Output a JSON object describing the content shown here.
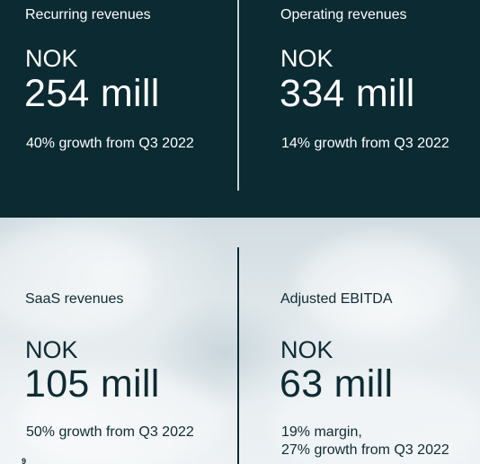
{
  "metrics": {
    "recurring": {
      "label": "Recurring revenues",
      "currency": "NOK",
      "value": "254 mill",
      "note": "40% growth from Q3 2022"
    },
    "operating": {
      "label": "Operating revenues",
      "currency": "NOK",
      "value": "334 mill",
      "note": "14% growth from Q3 2022"
    },
    "saas": {
      "label": "SaaS revenues",
      "currency": "NOK",
      "value": "105 mill",
      "note": "50% growth from Q3 2022"
    },
    "ebitda": {
      "label": "Adjusted EBITDA",
      "currency": "NOK",
      "value": "63 mill",
      "note_line1": "19% margin,",
      "note_line2": "27% growth from Q3 2022"
    }
  },
  "page_number": "9",
  "colors": {
    "dark_panel": "#0b2a32",
    "dark_text": "#0f2b33",
    "light_text": "#ffffff"
  }
}
